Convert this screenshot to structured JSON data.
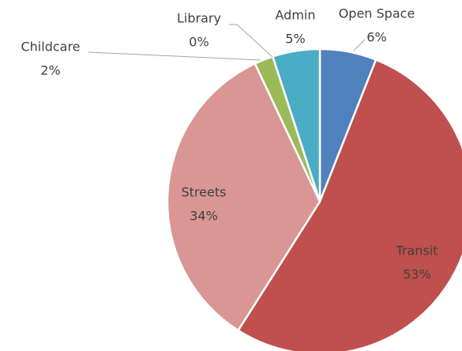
{
  "chart_data": {
    "type": "pie",
    "categories": [
      "Open Space",
      "Transit",
      "Streets",
      "Childcare",
      "Library",
      "Admin"
    ],
    "values": [
      6,
      53,
      34,
      2,
      0,
      5
    ],
    "value_labels": [
      "6%",
      "53%",
      "34%",
      "2%",
      "0%",
      "5%"
    ],
    "colors": [
      "#4f81bd",
      "#c0504d",
      "#d99694",
      "#9bbb59",
      "#8064a2",
      "#4bacc6"
    ]
  }
}
